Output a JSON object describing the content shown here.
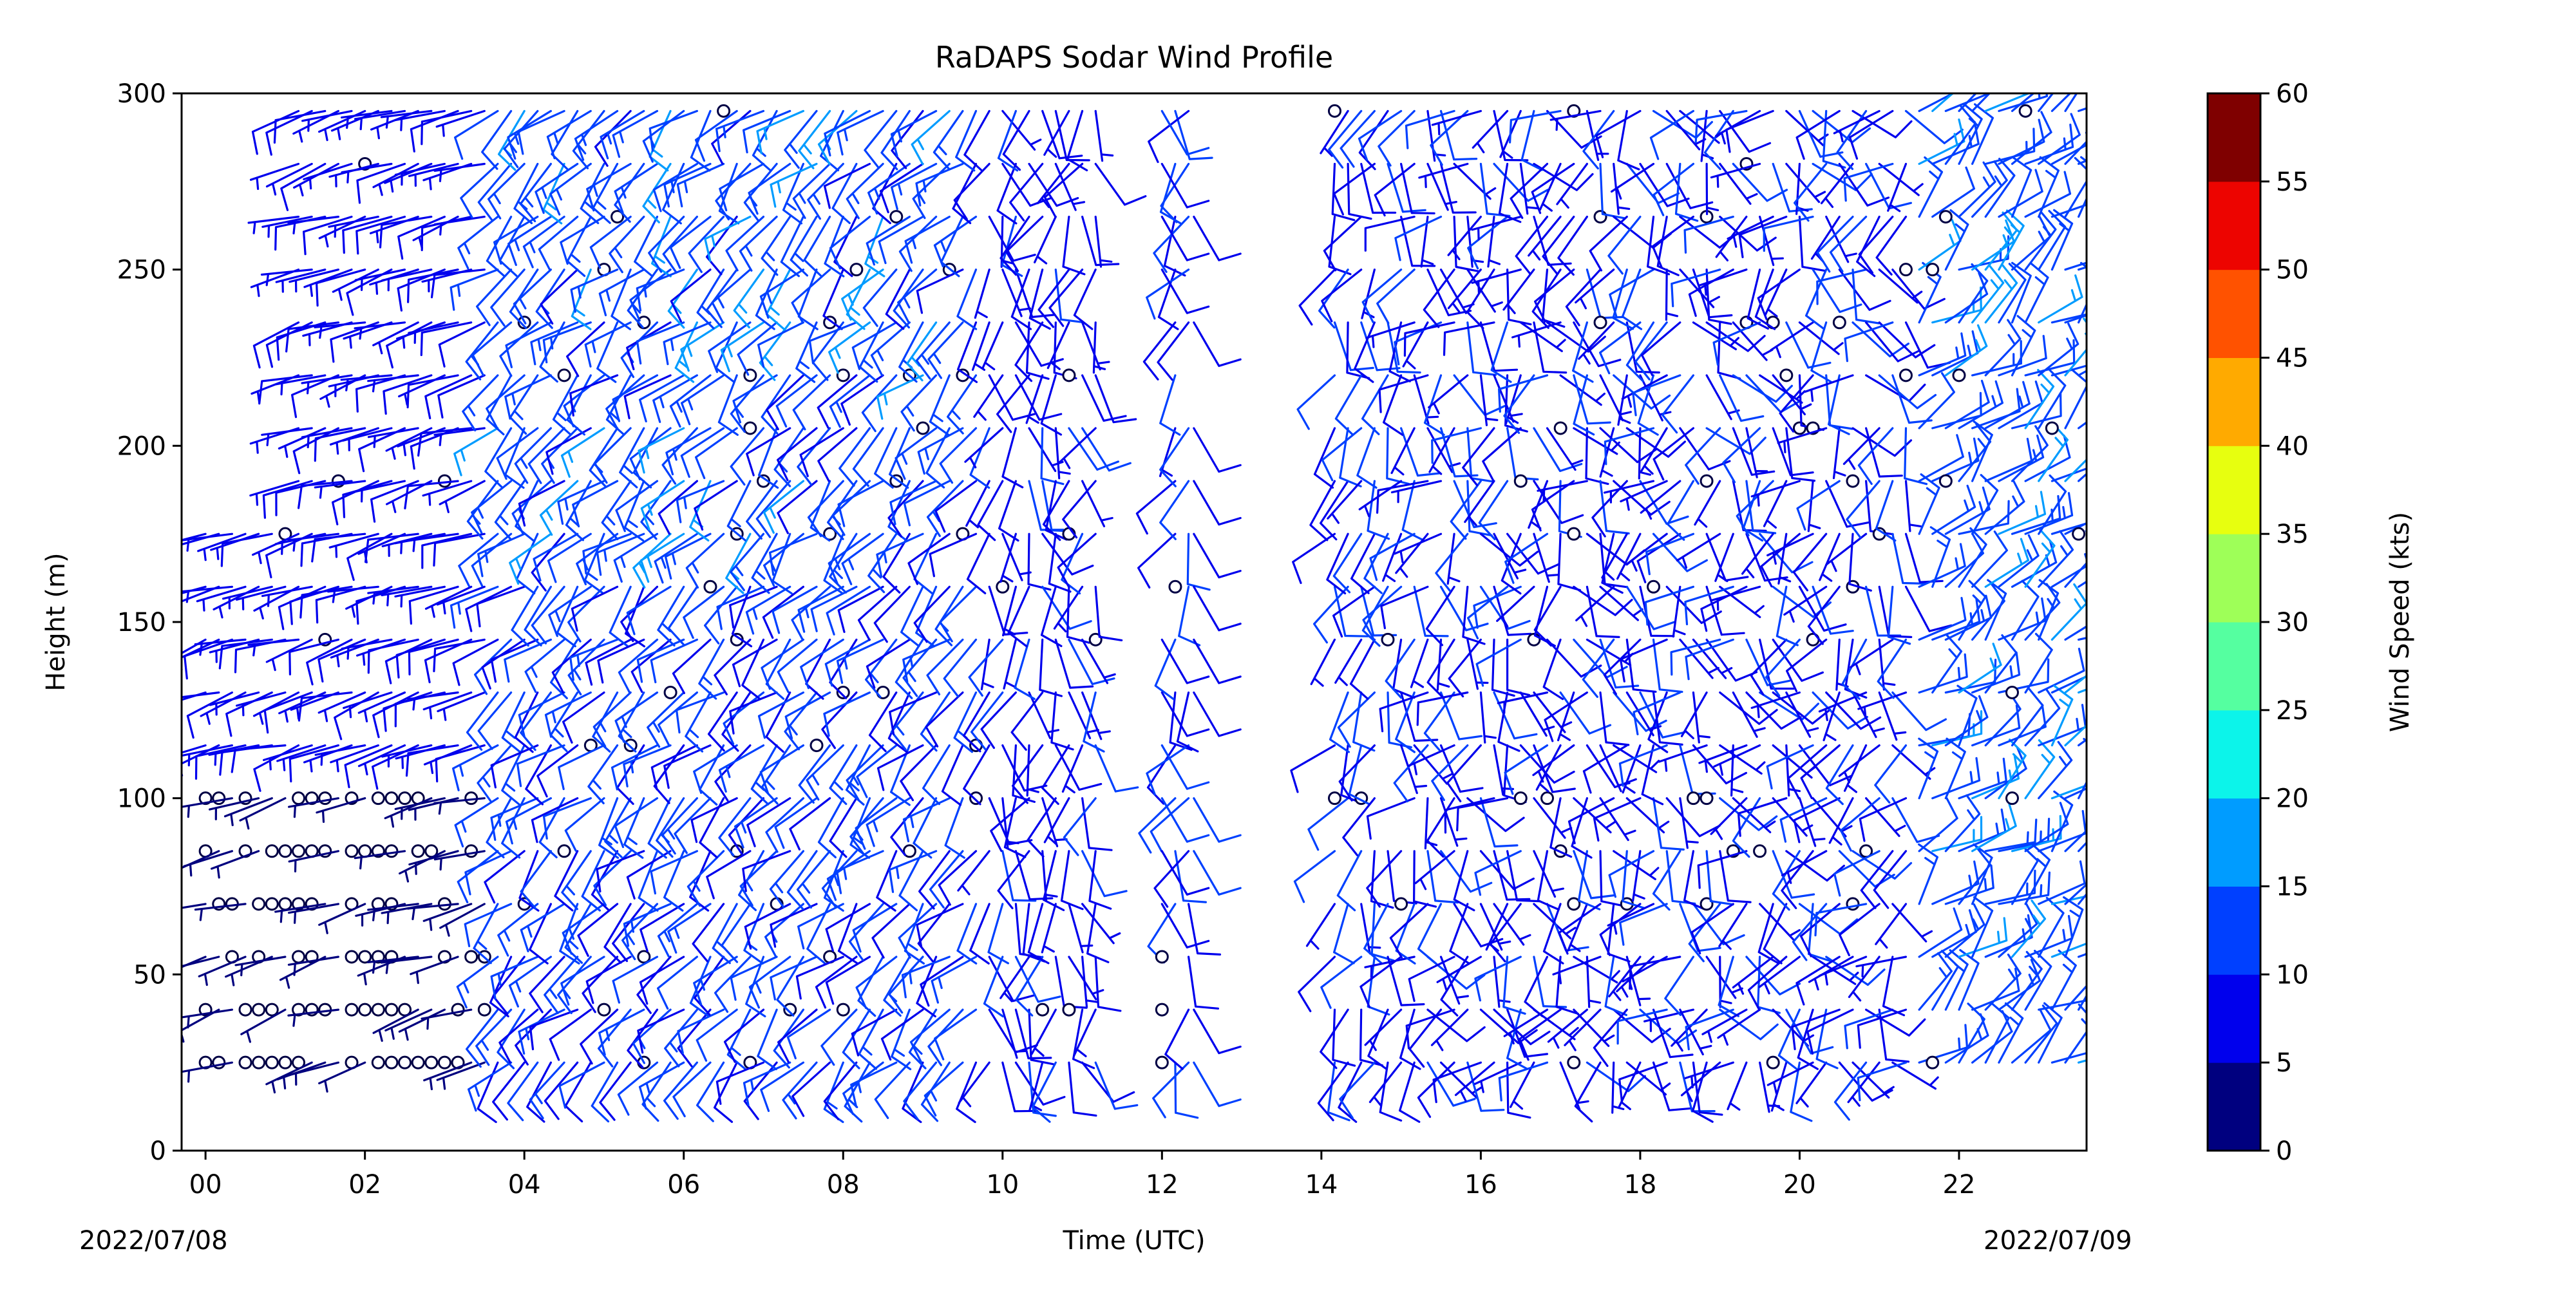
{
  "chart_data": {
    "type": "barbs",
    "title": "RaDAPS Sodar Wind Profile",
    "xlabel": "Time (UTC)",
    "ylabel": "Height (m)",
    "x_unit": "hours UTC from 2022-07-08 00:00",
    "xlim": [
      -0.3,
      23.6
    ],
    "ylim": [
      0,
      300
    ],
    "x_ticks": [
      0,
      2,
      4,
      6,
      8,
      10,
      12,
      14,
      16,
      18,
      20,
      22
    ],
    "x_tick_labels": [
      "00",
      "02",
      "04",
      "06",
      "08",
      "10",
      "12",
      "14",
      "16",
      "18",
      "20",
      "22"
    ],
    "y_ticks": [
      0,
      50,
      100,
      150,
      200,
      250,
      300
    ],
    "y_tick_labels": [
      "0",
      "50",
      "100",
      "150",
      "200",
      "250",
      "300"
    ],
    "start_date_label": "2022/07/08",
    "end_date_label": "2022/07/09",
    "heights_m": [
      25,
      40,
      55,
      70,
      85,
      100,
      115,
      130,
      145,
      160,
      175,
      190,
      205,
      220,
      235,
      250,
      265,
      280,
      295
    ],
    "time_step_min": 10,
    "data_gap_hours": [
      [
        11.3,
        12.0
      ],
      [
        12.4,
        14.0
      ]
    ],
    "sparse_hours": [
      12.0,
      12.4
    ],
    "colorbar": {
      "label": "Wind Speed (kts)",
      "bounds": [
        0,
        5,
        10,
        15,
        20,
        25,
        30,
        35,
        40,
        45,
        50,
        55,
        60
      ],
      "tick_labels": [
        "0",
        "5",
        "10",
        "15",
        "20",
        "25",
        "30",
        "35",
        "40",
        "45",
        "50",
        "55",
        "60"
      ],
      "colors": [
        "#00007f",
        "#0000ed",
        "#0040ff",
        "#009cff",
        "#0cf4ea",
        "#55ffa0",
        "#9eff58",
        "#e7ff0f",
        "#ffaa00",
        "#ff5200",
        "#ed0400",
        "#7f0000"
      ]
    },
    "calm_circle_fill": "#ffffff",
    "calm_circle_edge": "#000044"
  }
}
